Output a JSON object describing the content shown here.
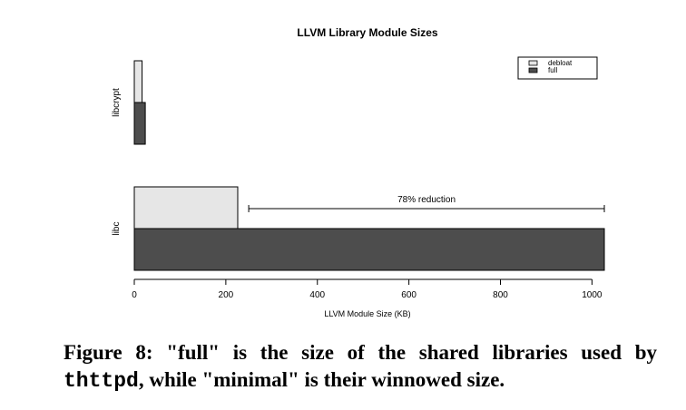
{
  "chart_data": {
    "type": "bar",
    "orientation": "horizontal",
    "title": "LLVM Library Module Sizes",
    "xlabel": "LLVM Module Size (KB)",
    "ylabel": "",
    "categories": [
      "libc",
      "libcrypt"
    ],
    "series": [
      {
        "name": "debloat",
        "color": "#e6e6e6",
        "values": [
          226,
          17
        ]
      },
      {
        "name": "full",
        "color": "#4d4d4d",
        "values": [
          1027,
          24
        ]
      }
    ],
    "xlim": [
      0,
      1027
    ],
    "xticks": [
      0,
      200,
      400,
      600,
      800,
      1000
    ],
    "grid": false,
    "legend": {
      "position": "top-right",
      "entries": [
        "debloat",
        "full"
      ]
    },
    "annotations": [
      {
        "text": "78% reduction",
        "category": "libc",
        "from": 250,
        "to": 1027
      }
    ]
  },
  "caption": {
    "line1": "Figure 8:  \"full\" is the size of the shared libraries used by",
    "code": "thttpd",
    "line2_rest": ", while \"minimal\" is their winnowed size."
  }
}
